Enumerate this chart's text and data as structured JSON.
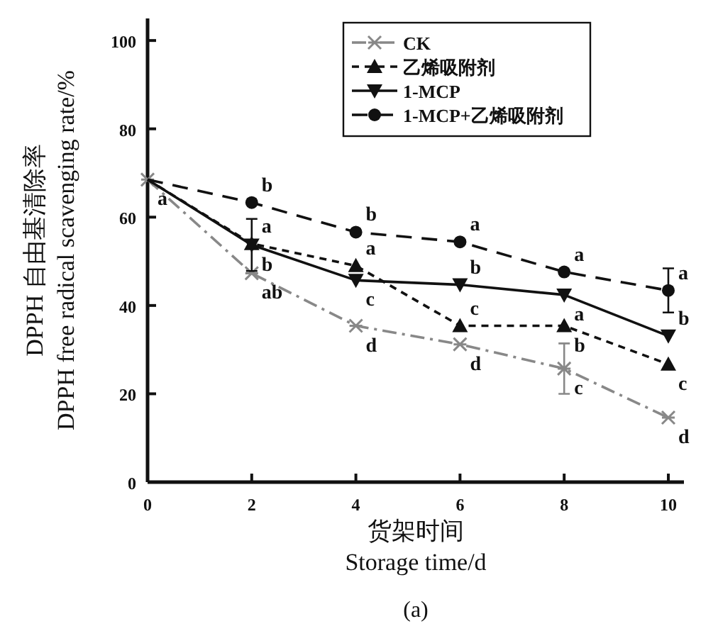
{
  "chart_data": {
    "type": "line",
    "xlabel": "货架时间\nStorage time/d",
    "ylabel": "DPPH 自由基清除率\nDPPH free radical scavenging rate/%",
    "x": [
      0,
      2,
      4,
      6,
      8,
      10
    ],
    "xlim": [
      0,
      10.3
    ],
    "ylim": [
      0,
      105
    ],
    "xticks": [
      0,
      2,
      4,
      6,
      8,
      10
    ],
    "yticks": [
      0,
      20,
      40,
      60,
      80,
      100
    ],
    "legend": "top right",
    "grid": false,
    "series": [
      {
        "name": "CK",
        "color": "#888888",
        "marker": "cross",
        "line_style": "dashdot",
        "values": [
          68.5,
          47.3,
          35.4,
          31.2,
          25.7,
          14.6
        ],
        "errors": [
          null,
          null,
          null,
          null,
          5.7,
          null
        ]
      },
      {
        "name": "乙烯吸附剂",
        "color": "#111111",
        "marker": "triangle",
        "line_style": "dashed",
        "values": [
          68.5,
          54,
          49,
          35.4,
          35.4,
          26.7
        ]
      },
      {
        "name": "1-MCP",
        "color": "#111111",
        "marker": "triangle-down",
        "line_style": "solid",
        "values": [
          68.5,
          53.7,
          45.7,
          44.7,
          42.4,
          33.1
        ],
        "errors": [
          null,
          5.9,
          null,
          null,
          null,
          null
        ]
      },
      {
        "name": "1-MCP+乙烯吸附剂",
        "color": "#111111",
        "marker": "circle",
        "line_style": "longdashed",
        "values": [
          68.5,
          63.3,
          56.6,
          54.4,
          47.6,
          43.4
        ],
        "errors": [
          null,
          null,
          null,
          null,
          null,
          5
        ]
      }
    ],
    "annotations": [
      {
        "text": "a",
        "x": 0,
        "y": 68.5
      },
      {
        "text": "b",
        "x": 2,
        "y": 63.3
      },
      {
        "text": "a",
        "x": 2,
        "y": 54
      },
      {
        "text": "b",
        "x": 2,
        "y": 53.7
      },
      {
        "text": "ab",
        "x": 2,
        "y": 47.3
      },
      {
        "text": "b",
        "x": 4,
        "y": 56.6
      },
      {
        "text": "a",
        "x": 4,
        "y": 49
      },
      {
        "text": "c",
        "x": 4,
        "y": 45.7
      },
      {
        "text": "d",
        "x": 4,
        "y": 35.4
      },
      {
        "text": "a",
        "x": 6,
        "y": 54.4
      },
      {
        "text": "b",
        "x": 6,
        "y": 44.7
      },
      {
        "text": "c",
        "x": 6,
        "y": 35.4
      },
      {
        "text": "d",
        "x": 6,
        "y": 31.2
      },
      {
        "text": "a",
        "x": 8,
        "y": 47.6
      },
      {
        "text": "a",
        "x": 8,
        "y": 42.4
      },
      {
        "text": "b",
        "x": 8,
        "y": 35.4
      },
      {
        "text": "c",
        "x": 8,
        "y": 25.7
      },
      {
        "text": "a",
        "x": 10,
        "y": 43.4
      },
      {
        "text": "b",
        "x": 10,
        "y": 33.1
      },
      {
        "text": "c",
        "x": 10,
        "y": 26.7
      },
      {
        "text": "d",
        "x": 10,
        "y": 14.6
      },
      "(a)"
    ]
  }
}
